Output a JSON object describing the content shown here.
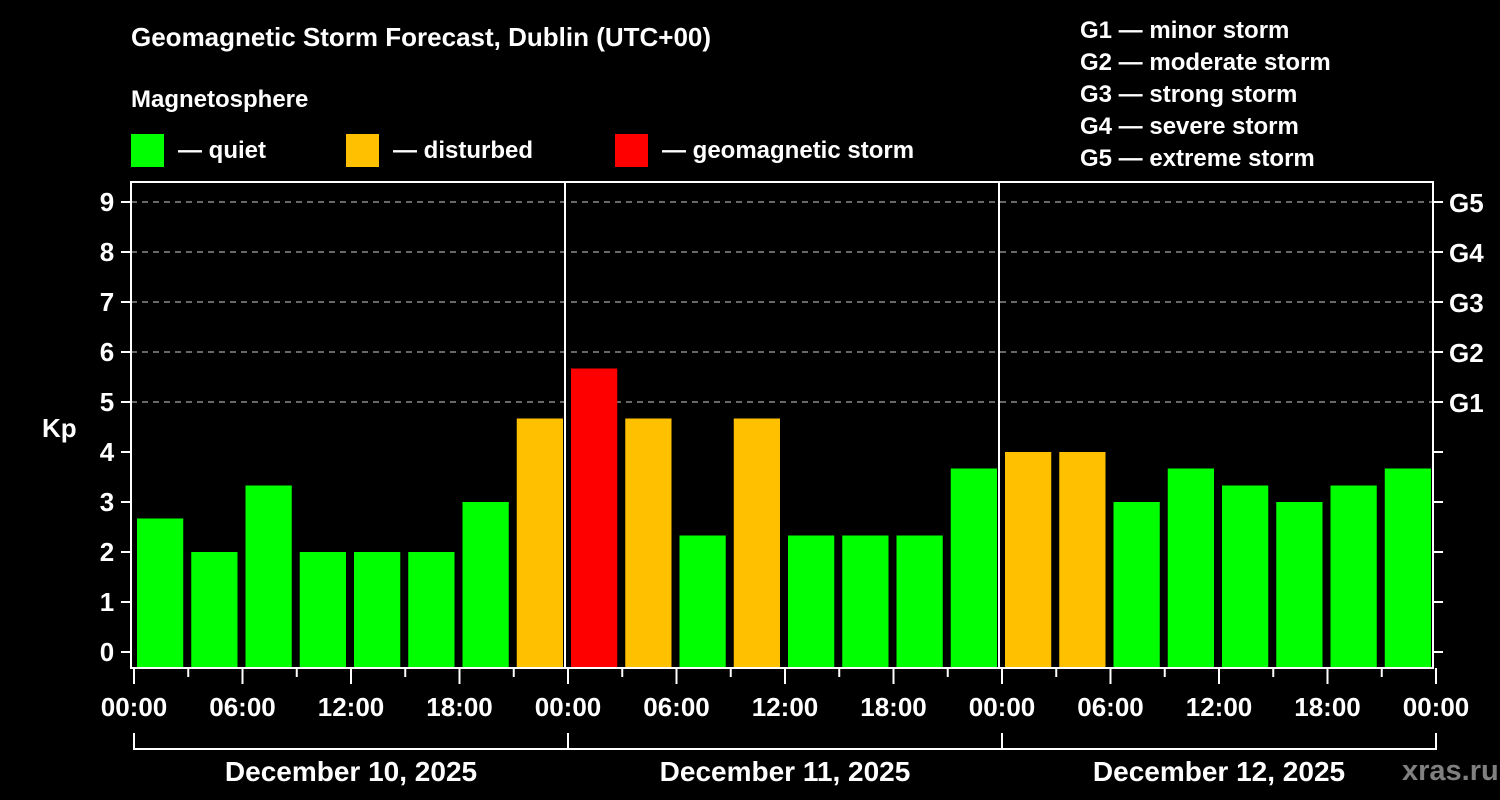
{
  "header": {
    "title": "Geomagnetic Storm Forecast, Dublin (UTC+00)",
    "subtitle": "Magnetosphere"
  },
  "legend": [
    {
      "label": "— quiet",
      "color": "#00ff00"
    },
    {
      "label": "— disturbed",
      "color": "#ffc000"
    },
    {
      "label": "— geomagnetic storm",
      "color": "#ff0000"
    }
  ],
  "scale_legend": [
    "G1 — minor storm",
    "G2 — moderate storm",
    "G3 — strong storm",
    "G4 — severe storm",
    "G5 — extreme storm"
  ],
  "watermark": "xras.ru",
  "chart_data": {
    "type": "bar",
    "title": "Geomagnetic Storm Forecast, Dublin (UTC+00)",
    "xlabel": "",
    "ylabel": "Kp",
    "ylim": [
      0,
      9
    ],
    "grid": "dashed horizontal lines at Kp 5–9",
    "y_ticks": [
      0,
      1,
      2,
      3,
      4,
      5,
      6,
      7,
      8,
      9
    ],
    "y2_ticks": [
      {
        "kp": 5,
        "label": "G1"
      },
      {
        "kp": 6,
        "label": "G2"
      },
      {
        "kp": 7,
        "label": "G3"
      },
      {
        "kp": 8,
        "label": "G4"
      },
      {
        "kp": 9,
        "label": "G5"
      }
    ],
    "x_tick_labels": [
      "00:00",
      "06:00",
      "12:00",
      "18:00",
      "00:00",
      "06:00",
      "12:00",
      "18:00",
      "00:00",
      "06:00",
      "12:00",
      "18:00",
      "00:00"
    ],
    "days": [
      "December 10, 2025",
      "December 11, 2025",
      "December 12, 2025"
    ],
    "interval_hours": 3,
    "categories": [
      "Dec 10 00-03",
      "Dec 10 03-06",
      "Dec 10 06-09",
      "Dec 10 09-12",
      "Dec 10 12-15",
      "Dec 10 15-18",
      "Dec 10 18-21",
      "Dec 10 21-24",
      "Dec 11 00-03",
      "Dec 11 03-06",
      "Dec 11 06-09",
      "Dec 11 09-12",
      "Dec 11 12-15",
      "Dec 11 15-18",
      "Dec 11 18-21",
      "Dec 11 21-24",
      "Dec 12 00-03",
      "Dec 12 03-06",
      "Dec 12 06-09",
      "Dec 12 09-12",
      "Dec 12 12-15",
      "Dec 12 15-18",
      "Dec 12 18-21",
      "Dec 12 21-24"
    ],
    "values": [
      2.67,
      2.0,
      3.33,
      2.0,
      2.0,
      2.0,
      3.0,
      4.67,
      5.67,
      4.67,
      2.33,
      4.67,
      2.33,
      2.33,
      2.33,
      3.67,
      4.0,
      4.0,
      3.0,
      3.67,
      3.33,
      3.0,
      3.33,
      3.67
    ],
    "status": [
      "quiet",
      "quiet",
      "quiet",
      "quiet",
      "quiet",
      "quiet",
      "quiet",
      "disturbed",
      "storm",
      "disturbed",
      "quiet",
      "disturbed",
      "quiet",
      "quiet",
      "quiet",
      "quiet",
      "disturbed",
      "disturbed",
      "quiet",
      "quiet",
      "quiet",
      "quiet",
      "quiet",
      "quiet"
    ],
    "colors": {
      "quiet": "#00ff00",
      "disturbed": "#ffc000",
      "storm": "#ff0000"
    }
  }
}
